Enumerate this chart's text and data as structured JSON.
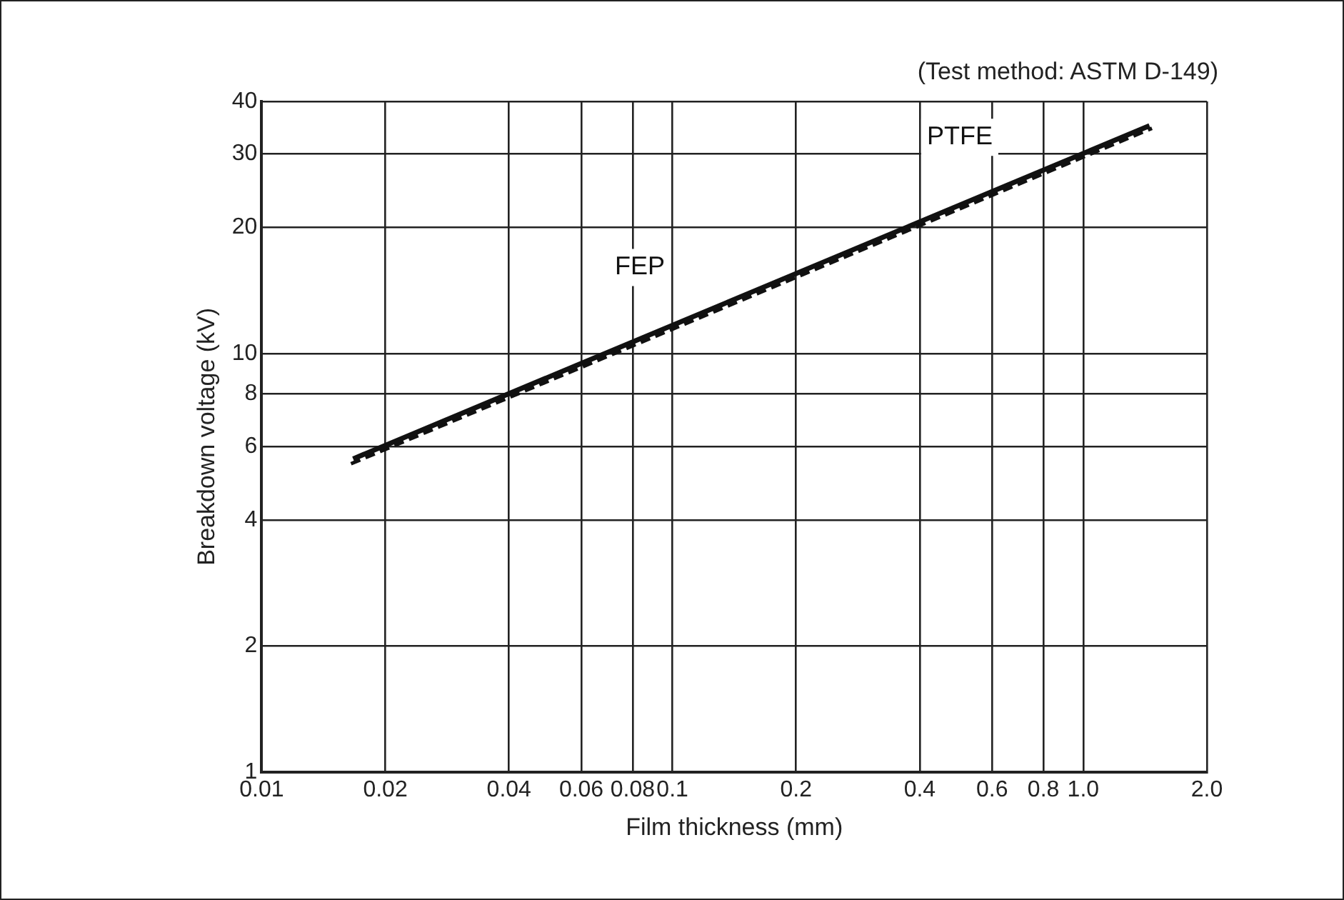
{
  "chart_data": {
    "type": "line",
    "xlabel": "Film thickness (mm)",
    "ylabel": "Breakdown voltage (kV)",
    "annotations": [
      "(Test method: ASTM D-149)"
    ],
    "log": "xy",
    "xlim": [
      0.01,
      2
    ],
    "ylim": [
      1,
      40
    ],
    "xticks": [
      0.01,
      0.02,
      0.04,
      0.06,
      0.08,
      0.1,
      0.2,
      0.4,
      0.6,
      0.8,
      {
        "value": 1,
        "label": "1.0"
      },
      {
        "value": 2,
        "label": "2.0"
      }
    ],
    "yticks": [
      1,
      2,
      4,
      6,
      8,
      10,
      20,
      30,
      40
    ],
    "grid": true,
    "legend": false,
    "marker": "none",
    "series": [
      {
        "name": "FEP",
        "color": "#111111",
        "line_style": "solid",
        "x": [
          0.0167,
          1.45
        ],
        "values": [
          5.6,
          35
        ]
      },
      {
        "name": "PTFE",
        "color": "#111111",
        "line_style": "dashed",
        "x": [
          0.0165,
          1.47
        ],
        "values": [
          5.45,
          34.5
        ]
      }
    ]
  }
}
